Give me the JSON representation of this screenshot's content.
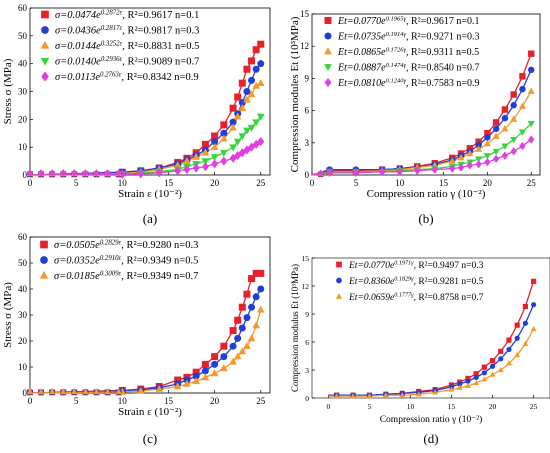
{
  "colors": {
    "red": "#e8202a",
    "blue": "#1f3fd8",
    "orange": "#f39a2a",
    "green": "#34d63c",
    "magenta": "#e040e0"
  },
  "panels": [
    {
      "id": "a",
      "label": "(a)",
      "ylabel": "Stress σ (MPa)",
      "xlabel": "Strain ε (10⁻²)",
      "xticks": [
        "0",
        "5",
        "10",
        "15",
        "20",
        "25"
      ],
      "yticks": [
        "0",
        "10",
        "20",
        "30",
        "40",
        "50",
        "60"
      ],
      "legend": [
        "σ=0.0474e^{0.2872ε}, R²=0.9617  n=0.1",
        "σ=0.0436e^{0.2817ε}, R²=0.9817  n=0.3",
        "σ=0.0144e^{0.3252ε}, R²=0.8831  n=0.5",
        "σ=0.0140e^{0.2936ε}, R²=0.9089  n=0.7",
        "σ=0.0113e^{0.2763ε}, R²=0.8342  n=0.9"
      ]
    },
    {
      "id": "b",
      "label": "(b)",
      "ylabel": "Compression modules Et (10³MPa)",
      "xlabel": "Compression ratio γ (10⁻²)",
      "xticks": [
        "0",
        "5",
        "10",
        "15",
        "20",
        "25"
      ],
      "yticks": [
        "0",
        "3",
        "6",
        "9",
        "12",
        "15"
      ],
      "legend": [
        "Et=0.0770e^{0.1965γ}, R²=0.9617  n=0.1",
        "Et=0.0735e^{0.1914γ}, R²=0.9271  n=0.3",
        "Et=0.0865e^{0.1726γ}, R²=0.9311  n=0.5",
        "Et=0.0887e^{0.1474γ}, R²=0.8540  n=0.7",
        "Et=0.0810e^{0.1240γ}, R²=0.7583  n=0.9"
      ]
    },
    {
      "id": "c",
      "label": "(c)",
      "ylabel": "Stress σ (MPa)",
      "xlabel": "Strain ε (10⁻²)",
      "xticks": [
        "0",
        "5",
        "10",
        "15",
        "20",
        "25"
      ],
      "yticks": [
        "0",
        "10",
        "20",
        "30",
        "40",
        "50",
        "60"
      ],
      "legend": [
        "σ=0.0505e^{0.2829ε}, R²=0.9280  n=0.3",
        "σ=0.0352e^{0.2910ε}, R²=0.9349  n=0.5",
        "σ=0.0185e^{0.3009ε}, R²=0.9349  n=0.7"
      ]
    },
    {
      "id": "d",
      "label": "(d)",
      "ylabel": "Compression modulus Et (10³MPa)",
      "xlabel": "Compression ratio γ (10⁻²)",
      "xticks": [
        "0",
        "5",
        "10",
        "15",
        "20",
        "25"
      ],
      "yticks": [
        "0",
        "3",
        "6",
        "9",
        "12",
        "15"
      ],
      "legend": [
        "Et=0.0770e^{0.1971γ}, R²=0.9497  n=0.3",
        "Et=0.8360e^{0.1829γ}, R²=0.9281  n=0.5",
        "Et=0.0659e^{0.1777γ}, R²=0.8758  n=0.7"
      ]
    }
  ],
  "chart_data": [
    {
      "type": "scatter",
      "panel": "(a)",
      "ylabel": "Stress σ (MPa)",
      "xlabel": "Strain ε (10⁻²)",
      "xlim": [
        0,
        26
      ],
      "ylim": [
        0,
        60
      ],
      "series": [
        {
          "name": "n=0.1",
          "a": 0.0474,
          "b": 0.2872,
          "r2": 0.9617,
          "x": [
            10,
            12,
            14,
            16,
            17,
            18,
            19,
            20,
            21,
            22,
            22.5,
            23,
            23.5,
            24,
            24.5,
            25
          ],
          "y": [
            1,
            1.5,
            2.5,
            4.5,
            6,
            8,
            11,
            14,
            18,
            24,
            28,
            33,
            38,
            41,
            45,
            47
          ]
        },
        {
          "name": "n=0.3",
          "a": 0.0436,
          "b": 0.2817,
          "r2": 0.9817,
          "x": [
            10,
            12,
            14,
            16,
            17,
            18,
            19,
            20,
            21,
            22,
            22.5,
            23,
            23.5,
            24,
            24.5,
            25
          ],
          "y": [
            1,
            1.5,
            2.5,
            4,
            5.5,
            7,
            9,
            12,
            15,
            19,
            22,
            26,
            30,
            34,
            38,
            40
          ]
        },
        {
          "name": "n=0.5",
          "a": 0.0144,
          "b": 0.3252,
          "r2": 0.8831,
          "x": [
            10,
            12,
            14,
            16,
            17,
            18,
            19,
            20,
            21,
            22,
            22.5,
            23,
            23.5,
            24,
            24.5,
            25
          ],
          "y": [
            0.5,
            1,
            2,
            3.5,
            5,
            6.5,
            8,
            10,
            13,
            17,
            21,
            24,
            27,
            29,
            32,
            33
          ]
        },
        {
          "name": "n=0.7",
          "a": 0.014,
          "b": 0.2936,
          "r2": 0.9089,
          "x": [
            10,
            12,
            14,
            16,
            17,
            18,
            19,
            20,
            21,
            22,
            22.5,
            23,
            23.5,
            24,
            24.5,
            25
          ],
          "y": [
            0.3,
            0.6,
            1.2,
            2,
            3,
            4,
            5,
            6.5,
            8,
            10,
            12,
            14,
            16,
            17,
            19,
            21
          ]
        },
        {
          "name": "n=0.9",
          "a": 0.0113,
          "b": 0.2763,
          "r2": 0.8342,
          "x": [
            10,
            12,
            14,
            16,
            17,
            18,
            19,
            20,
            21,
            22,
            22.5,
            23,
            23.5,
            24,
            24.5,
            25
          ],
          "y": [
            0.2,
            0.4,
            0.8,
            1.5,
            2,
            2.5,
            3,
            4,
            5,
            6,
            7,
            8,
            9,
            10,
            11,
            12
          ]
        }
      ]
    },
    {
      "type": "scatter",
      "panel": "(b)",
      "ylabel": "Compression modules Et (10³MPa)",
      "xlabel": "Compression ratio γ (10⁻²)",
      "xlim": [
        0,
        26
      ],
      "ylim": [
        0,
        15
      ],
      "series": [
        {
          "name": "n=0.1",
          "a": 0.077,
          "b": 0.1965,
          "r2": 0.9617,
          "x": [
            2,
            5,
            8,
            10,
            12,
            14,
            16,
            17,
            18,
            19,
            20,
            21,
            22,
            23,
            24,
            25
          ],
          "y": [
            0.4,
            0.4,
            0.5,
            0.6,
            0.8,
            1.1,
            1.6,
            2,
            2.5,
            3.1,
            3.9,
            4.9,
            6.1,
            7.5,
            9.2,
            11.3
          ]
        },
        {
          "name": "n=0.3",
          "a": 0.0735,
          "b": 0.1914,
          "r2": 0.9271,
          "x": [
            2,
            5,
            8,
            10,
            12,
            14,
            16,
            17,
            18,
            19,
            20,
            21,
            22,
            23,
            24,
            25
          ],
          "y": [
            0.5,
            0.5,
            0.5,
            0.6,
            0.7,
            1,
            1.4,
            1.8,
            2.2,
            2.8,
            3.5,
            4.3,
            5.3,
            6.5,
            8,
            9.8
          ]
        },
        {
          "name": "n=0.5",
          "a": 0.0865,
          "b": 0.1726,
          "r2": 0.9311,
          "x": [
            2,
            5,
            8,
            10,
            12,
            14,
            16,
            17,
            18,
            19,
            20,
            21,
            22,
            23,
            24,
            25
          ],
          "y": [
            0.3,
            0.3,
            0.4,
            0.5,
            0.7,
            0.9,
            1.3,
            1.6,
            2,
            2.4,
            2.9,
            3.6,
            4.3,
            5.2,
            6.4,
            7.8
          ]
        },
        {
          "name": "n=0.7",
          "a": 0.0887,
          "b": 0.1474,
          "r2": 0.854,
          "x": [
            2,
            5,
            8,
            10,
            12,
            14,
            16,
            17,
            18,
            19,
            20,
            21,
            22,
            23,
            24,
            25
          ],
          "y": [
            0.3,
            0.3,
            0.3,
            0.4,
            0.5,
            0.6,
            0.8,
            1,
            1.2,
            1.5,
            1.8,
            2.2,
            2.7,
            3.3,
            4,
            4.8
          ]
        },
        {
          "name": "n=0.9",
          "a": 0.081,
          "b": 0.124,
          "r2": 0.7583,
          "x": [
            2,
            5,
            8,
            10,
            12,
            14,
            16,
            17,
            18,
            19,
            20,
            21,
            22,
            23,
            24,
            25
          ],
          "y": [
            0.2,
            0.2,
            0.3,
            0.3,
            0.4,
            0.5,
            0.6,
            0.7,
            0.9,
            1,
            1.2,
            1.5,
            1.8,
            2.2,
            2.7,
            3.3
          ]
        }
      ]
    },
    {
      "type": "scatter",
      "panel": "(c)",
      "ylabel": "Stress σ (MPa)",
      "xlabel": "Strain ε (10⁻²)",
      "xlim": [
        0,
        26
      ],
      "ylim": [
        0,
        60
      ],
      "series": [
        {
          "name": "n=0.3",
          "a": 0.0505,
          "b": 0.2829,
          "r2": 0.928,
          "x": [
            10,
            12,
            14,
            16,
            17,
            18,
            19,
            20,
            21,
            22,
            22.5,
            23,
            23.5,
            24,
            24.5,
            25
          ],
          "y": [
            1,
            1.5,
            2.5,
            5,
            6,
            8,
            11,
            14,
            18,
            24,
            28,
            33,
            38,
            44,
            46,
            46
          ]
        },
        {
          "name": "n=0.5",
          "a": 0.0352,
          "b": 0.291,
          "r2": 0.9349,
          "x": [
            10,
            12,
            14,
            16,
            17,
            18,
            19,
            20,
            21,
            22,
            22.5,
            23,
            23.5,
            24,
            24.5,
            25
          ],
          "y": [
            0.8,
            1.2,
            2,
            3.5,
            5,
            6.5,
            8.5,
            11,
            14,
            18,
            21,
            25,
            29,
            33,
            37,
            40
          ]
        },
        {
          "name": "n=0.7",
          "a": 0.0185,
          "b": 0.3009,
          "r2": 0.9349,
          "x": [
            10,
            12,
            14,
            16,
            17,
            18,
            19,
            20,
            21,
            22,
            22.5,
            23,
            23.5,
            24,
            24.5,
            25
          ],
          "y": [
            0.4,
            0.8,
            1.5,
            2.5,
            3.5,
            4.5,
            6,
            7.5,
            9.5,
            12,
            14,
            16,
            18,
            21,
            26,
            32
          ]
        }
      ]
    },
    {
      "type": "line",
      "panel": "(d)",
      "ylabel": "Compression modulus Et (10³MPa)",
      "xlabel": "Compression ratio γ (10⁻²)",
      "xlim": [
        -2,
        27
      ],
      "ylim": [
        0,
        15
      ],
      "series": [
        {
          "name": "n=0.3",
          "a": 0.077,
          "b": 0.1971,
          "r2": 0.9497,
          "x": [
            1,
            3,
            5,
            7,
            9,
            11,
            13,
            15,
            16,
            17,
            18,
            19,
            20,
            21,
            22,
            23,
            24,
            25
          ],
          "y": [
            0.3,
            0.3,
            0.3,
            0.4,
            0.5,
            0.7,
            0.9,
            1.4,
            1.7,
            2.1,
            2.6,
            3.3,
            4,
            5,
            6.2,
            7.8,
            9.8,
            12.5
          ]
        },
        {
          "name": "n=0.5",
          "a": 0.836,
          "b": 0.1829,
          "r2": 0.9281,
          "x": [
            1,
            3,
            5,
            7,
            9,
            11,
            13,
            15,
            16,
            17,
            18,
            19,
            20,
            21,
            22,
            23,
            24,
            25
          ],
          "y": [
            0.3,
            0.3,
            0.3,
            0.4,
            0.5,
            0.6,
            0.8,
            1.2,
            1.5,
            1.8,
            2.2,
            2.7,
            3.4,
            4.2,
            5.2,
            6.4,
            8,
            10
          ]
        },
        {
          "name": "n=0.7",
          "a": 0.0659,
          "b": 0.1777,
          "r2": 0.8758,
          "x": [
            1,
            3,
            5,
            7,
            9,
            11,
            13,
            15,
            16,
            17,
            18,
            19,
            20,
            21,
            22,
            23,
            24,
            25
          ],
          "y": [
            0.2,
            0.2,
            0.2,
            0.3,
            0.3,
            0.4,
            0.6,
            0.9,
            1.1,
            1.3,
            1.6,
            2,
            2.5,
            3,
            3.7,
            4.6,
            5.8,
            7.4
          ]
        }
      ]
    }
  ]
}
